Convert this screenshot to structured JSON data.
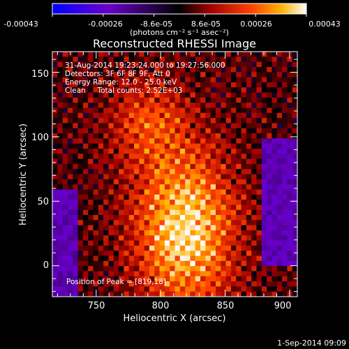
{
  "chart_data": {
    "type": "heatmap",
    "title": "Reconstructed RHESSI Image",
    "xlabel": "Heliocentric X (arcsec)",
    "ylabel": "Heliocentric Y (arcsec)",
    "xlim": [
      716,
      906
    ],
    "ylim": [
      -24,
      166
    ],
    "xticks": [
      "750",
      "800",
      "850",
      "900"
    ],
    "yticks": [
      "0",
      "50",
      "100",
      "150"
    ],
    "colorbar": {
      "range": [
        -0.00043,
        0.00043
      ],
      "tick_labels": [
        "-0.00043",
        "-0.00026",
        "-8.6e-05",
        "8.6e-05",
        "0.00026",
        "0.00043"
      ],
      "unit_label": "(photons cm⁻² s⁻¹ asec⁻²)",
      "colors": [
        "#0000ff",
        "#6a00c8",
        "#000000",
        "#a00000",
        "#ff4000",
        "#ffb000",
        "#ffffff"
      ]
    },
    "annotations": [
      "31-Aug-2014 19:23:24.000 to 19:27:56.000",
      "Detectors: 3F 6F 8F 9F, Att 0",
      "Energy Range: 12.0 - 25.0 keV",
      "Clean     Total counts: 2.52E+03"
    ],
    "peak_label": "Position of Peak = [819,18]",
    "peak": {
      "x": 819,
      "y": 18
    },
    "footer_date": "1-Sep-2014 09:09"
  }
}
